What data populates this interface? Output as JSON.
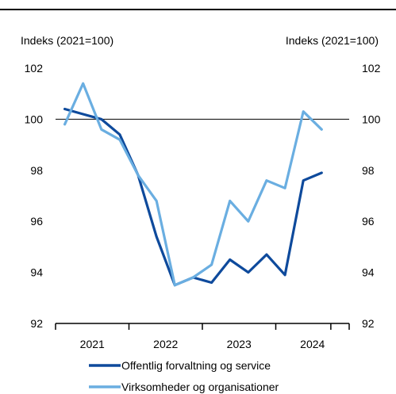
{
  "chart_data": {
    "type": "line",
    "ylabel_left": "Indeks (2021=100)",
    "ylabel_right": "Indeks (2021=100)",
    "ylim": [
      92,
      102
    ],
    "yticks": [
      "92",
      "94",
      "96",
      "98",
      "100",
      "102"
    ],
    "reference_line": 100,
    "categories": [
      "2021",
      "2022",
      "2023",
      "2024"
    ],
    "x": [
      "2021K1",
      "2021K2",
      "2021K3",
      "2021K4",
      "2022K1",
      "2022K2",
      "2022K3",
      "2022K4",
      "2023K1",
      "2023K2",
      "2023K3",
      "2023K4",
      "2024K1",
      "2024K2",
      "2024K3"
    ],
    "series": [
      {
        "name": "Offentlig forvaltning og service",
        "color": "#0e4a9c",
        "values": [
          100.4,
          100.2,
          100.0,
          99.4,
          97.8,
          95.4,
          93.5,
          93.8,
          93.6,
          94.5,
          94.0,
          94.7,
          93.9,
          97.6,
          97.9
        ]
      },
      {
        "name": "Virksomheder og organisationer",
        "color": "#6aaee1",
        "values": [
          99.8,
          101.4,
          99.6,
          99.2,
          97.8,
          96.8,
          93.5,
          93.8,
          94.3,
          96.8,
          96.0,
          97.6,
          97.3,
          100.3,
          99.6
        ]
      }
    ],
    "grid": false,
    "legend": "bottom"
  }
}
